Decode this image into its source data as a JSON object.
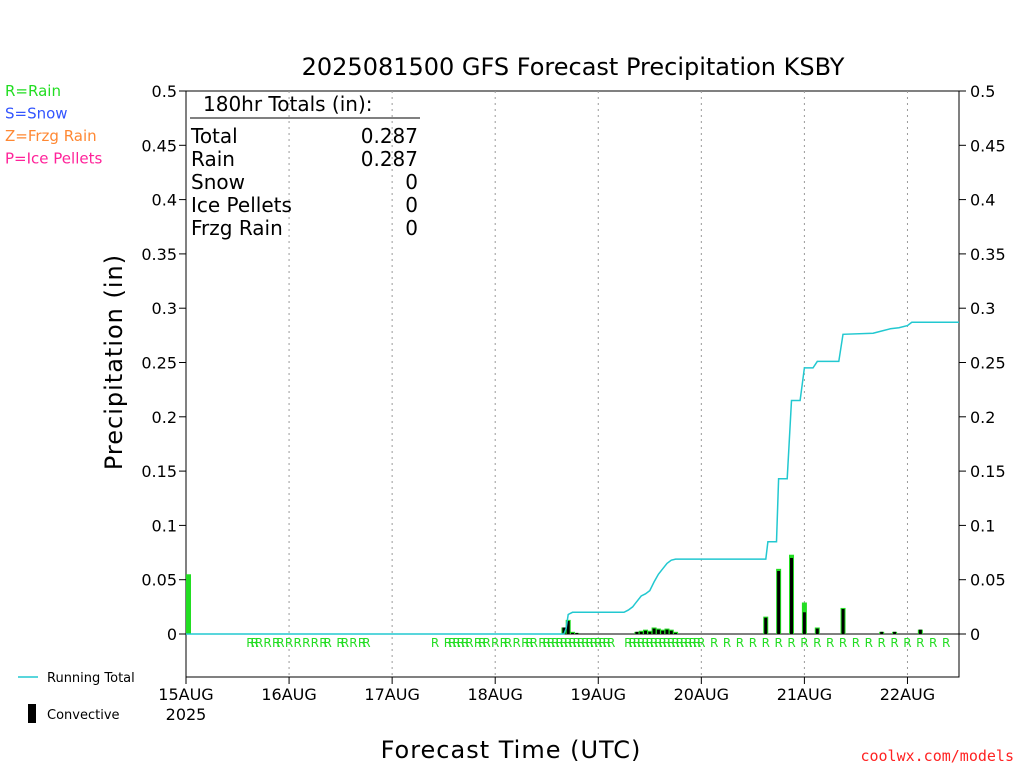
{
  "chart_data": {
    "type": "bar",
    "title": "2025081500 GFS Forecast Precipitation KSBY",
    "xlabel": "Forecast Time (UTC)",
    "ylabel": "Precipitation (in)",
    "ylim": [
      0,
      0.5
    ],
    "y_ticks": [
      "0.5",
      "0.45",
      "0.4",
      "0.35",
      "0.3",
      "0.25",
      "0.2",
      "0.15",
      "0.1",
      "0.05",
      "0"
    ],
    "y_tick_values": [
      0.5,
      0.45,
      0.4,
      0.35,
      0.3,
      0.25,
      0.2,
      0.15,
      0.1,
      0.05,
      0
    ],
    "x_ticks": [
      {
        "label": "15AUG",
        "hour": 0
      },
      {
        "label": "16AUG",
        "hour": 24
      },
      {
        "label": "17AUG",
        "hour": 48
      },
      {
        "label": "18AUG",
        "hour": 72
      },
      {
        "label": "19AUG",
        "hour": 96
      },
      {
        "label": "20AUG",
        "hour": 120
      },
      {
        "label": "21AUG",
        "hour": 144
      },
      {
        "label": "22AUG",
        "hour": 168
      }
    ],
    "x_year_label": "2025",
    "x_range_hours": [
      0,
      180
    ],
    "grid": "vertical dotted at day boundaries",
    "legend_ptype": [
      {
        "text": "R=Rain",
        "color": "#22dd22"
      },
      {
        "text": "S=Snow",
        "color": "#3355ff"
      },
      {
        "text": "Z=Frzg Rain",
        "color": "#ff8833"
      },
      {
        "text": "P=Ice Pellets",
        "color": "#ff2299"
      }
    ],
    "legend_bottom": {
      "running_total": "Running Total",
      "convective": "Convective"
    },
    "totals_box": {
      "header": "180hr Totals (in):",
      "rows": [
        {
          "label": "Total",
          "value": "0.287"
        },
        {
          "label": "Rain",
          "value": "0.287"
        },
        {
          "label": "Snow",
          "value": "0"
        },
        {
          "label": "Ice Pellets",
          "value": "0"
        },
        {
          "label": "Frzg Rain",
          "value": "0"
        }
      ]
    },
    "series": [
      {
        "name": "Running Total",
        "color": "#22c8d0",
        "points": [
          [
            0,
            0
          ],
          [
            88,
            0
          ],
          [
            88.5,
            0.005
          ],
          [
            89,
            0.018
          ],
          [
            90,
            0.02
          ],
          [
            96,
            0.02
          ],
          [
            102,
            0.02
          ],
          [
            103,
            0.022
          ],
          [
            104,
            0.025
          ],
          [
            105,
            0.03
          ],
          [
            106,
            0.035
          ],
          [
            107,
            0.037
          ],
          [
            108,
            0.04
          ],
          [
            109,
            0.048
          ],
          [
            110,
            0.055
          ],
          [
            111,
            0.06
          ],
          [
            112,
            0.065
          ],
          [
            113,
            0.068
          ],
          [
            114,
            0.069
          ],
          [
            135,
            0.069
          ],
          [
            135.5,
            0.085
          ],
          [
            137.5,
            0.085
          ],
          [
            138,
            0.143
          ],
          [
            140,
            0.143
          ],
          [
            141,
            0.215
          ],
          [
            143,
            0.215
          ],
          [
            144,
            0.245
          ],
          [
            146,
            0.245
          ],
          [
            147,
            0.251
          ],
          [
            152,
            0.251
          ],
          [
            153,
            0.276
          ],
          [
            160,
            0.277
          ],
          [
            162,
            0.279
          ],
          [
            164,
            0.281
          ],
          [
            166,
            0.282
          ],
          [
            168,
            0.284
          ],
          [
            169,
            0.287
          ],
          [
            180,
            0.287
          ]
        ]
      }
    ],
    "precip_bars": [
      {
        "hour": 0,
        "total": 0.055,
        "convective": 0
      },
      {
        "hour": 88,
        "total": 0.006,
        "convective": 0.006
      },
      {
        "hour": 89,
        "total": 0.013,
        "convective": 0.012
      },
      {
        "hour": 90,
        "total": 0.002,
        "convective": 0.001
      },
      {
        "hour": 91,
        "total": 0.001,
        "convective": 0.001
      },
      {
        "hour": 105,
        "total": 0.002,
        "convective": 0.002
      },
      {
        "hour": 106,
        "total": 0.003,
        "convective": 0.002
      },
      {
        "hour": 107,
        "total": 0.004,
        "convective": 0.003
      },
      {
        "hour": 108,
        "total": 0.003,
        "convective": 0.002
      },
      {
        "hour": 109,
        "total": 0.006,
        "convective": 0.005
      },
      {
        "hour": 110,
        "total": 0.005,
        "convective": 0.004
      },
      {
        "hour": 111,
        "total": 0.004,
        "convective": 0.003
      },
      {
        "hour": 112,
        "total": 0.005,
        "convective": 0.004
      },
      {
        "hour": 113,
        "total": 0.004,
        "convective": 0.003
      },
      {
        "hour": 114,
        "total": 0.002,
        "convective": 0.001
      },
      {
        "hour": 135,
        "total": 0.016,
        "convective": 0.015
      },
      {
        "hour": 138,
        "total": 0.06,
        "convective": 0.058
      },
      {
        "hour": 141,
        "total": 0.073,
        "convective": 0.07
      },
      {
        "hour": 144,
        "total": 0.029,
        "convective": 0.02
      },
      {
        "hour": 147,
        "total": 0.006,
        "convective": 0.005
      },
      {
        "hour": 153,
        "total": 0.024,
        "convective": 0.023
      },
      {
        "hour": 162,
        "total": 0.002,
        "convective": 0.002
      },
      {
        "hour": 165,
        "total": 0.002,
        "convective": 0.002
      },
      {
        "hour": 171,
        "total": 0.004,
        "convective": 0.004
      }
    ],
    "ptype_marks": {
      "letter": "R",
      "hours": [
        15,
        16,
        17,
        19,
        21,
        22,
        24,
        26,
        28,
        30,
        32,
        33,
        36,
        37,
        39,
        41,
        42,
        58,
        61,
        62,
        63,
        64,
        65,
        66,
        68,
        69,
        70,
        72,
        74,
        75,
        77,
        79,
        80,
        81,
        83,
        84,
        85,
        86,
        87,
        88,
        89,
        90,
        91,
        92,
        93,
        94,
        95,
        96,
        97,
        98,
        99,
        103,
        104,
        105,
        106,
        107,
        108,
        109,
        110,
        111,
        112,
        113,
        114,
        115,
        116,
        117,
        118,
        119,
        120,
        123,
        126,
        129,
        132,
        135,
        138,
        141,
        144,
        147,
        150,
        153,
        156,
        159,
        162,
        165,
        168,
        171,
        174,
        177
      ]
    }
  },
  "credit": "coolwx.com/models"
}
